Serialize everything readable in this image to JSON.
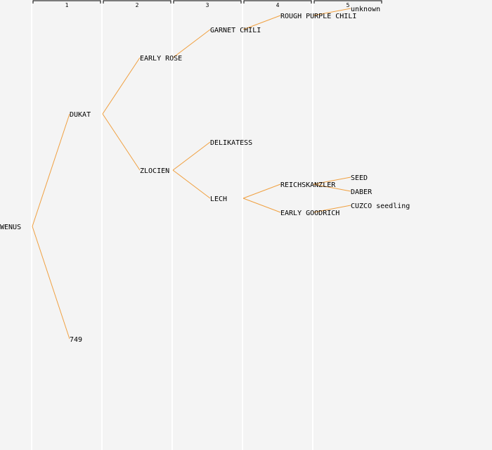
{
  "colors": {
    "background": "#f4f4f4",
    "grid": "#ffffff",
    "link": "#f0a040",
    "bracket": "#000000"
  },
  "generations": [
    "1",
    "2",
    "3",
    "4",
    "5"
  ],
  "tree": {
    "root": "WENUS",
    "nodes": [
      {
        "id": "wenus",
        "label": "WENUS",
        "gen": 0,
        "parent": null
      },
      {
        "id": "dukat",
        "label": "DUKAT",
        "gen": 1,
        "parent": "wenus"
      },
      {
        "id": "n749",
        "label": "749",
        "gen": 1,
        "parent": "wenus"
      },
      {
        "id": "erose",
        "label": "EARLY ROSE",
        "gen": 2,
        "parent": "dukat"
      },
      {
        "id": "zlocien",
        "label": "ZLOCIEN",
        "gen": 2,
        "parent": "dukat"
      },
      {
        "id": "garnet",
        "label": "GARNET CHILI",
        "gen": 3,
        "parent": "erose"
      },
      {
        "id": "delik",
        "label": "DELIKATESS",
        "gen": 3,
        "parent": "zlocien"
      },
      {
        "id": "lech",
        "label": "LECH",
        "gen": 3,
        "parent": "zlocien"
      },
      {
        "id": "rough",
        "label": "ROUGH PURPLE CHILI",
        "gen": 4,
        "parent": "garnet"
      },
      {
        "id": "reich",
        "label": "REICHSKANZLER",
        "gen": 4,
        "parent": "lech"
      },
      {
        "id": "egood",
        "label": "EARLY GOODRICH",
        "gen": 4,
        "parent": "lech"
      },
      {
        "id": "unknown",
        "label": "unknown",
        "gen": 5,
        "parent": "rough"
      },
      {
        "id": "seed",
        "label": "SEED",
        "gen": 5,
        "parent": "reich"
      },
      {
        "id": "daber",
        "label": "DABER",
        "gen": 5,
        "parent": "reich"
      },
      {
        "id": "cuzco",
        "label": "CUZCO seedling",
        "gen": 5,
        "parent": "egood"
      }
    ]
  }
}
